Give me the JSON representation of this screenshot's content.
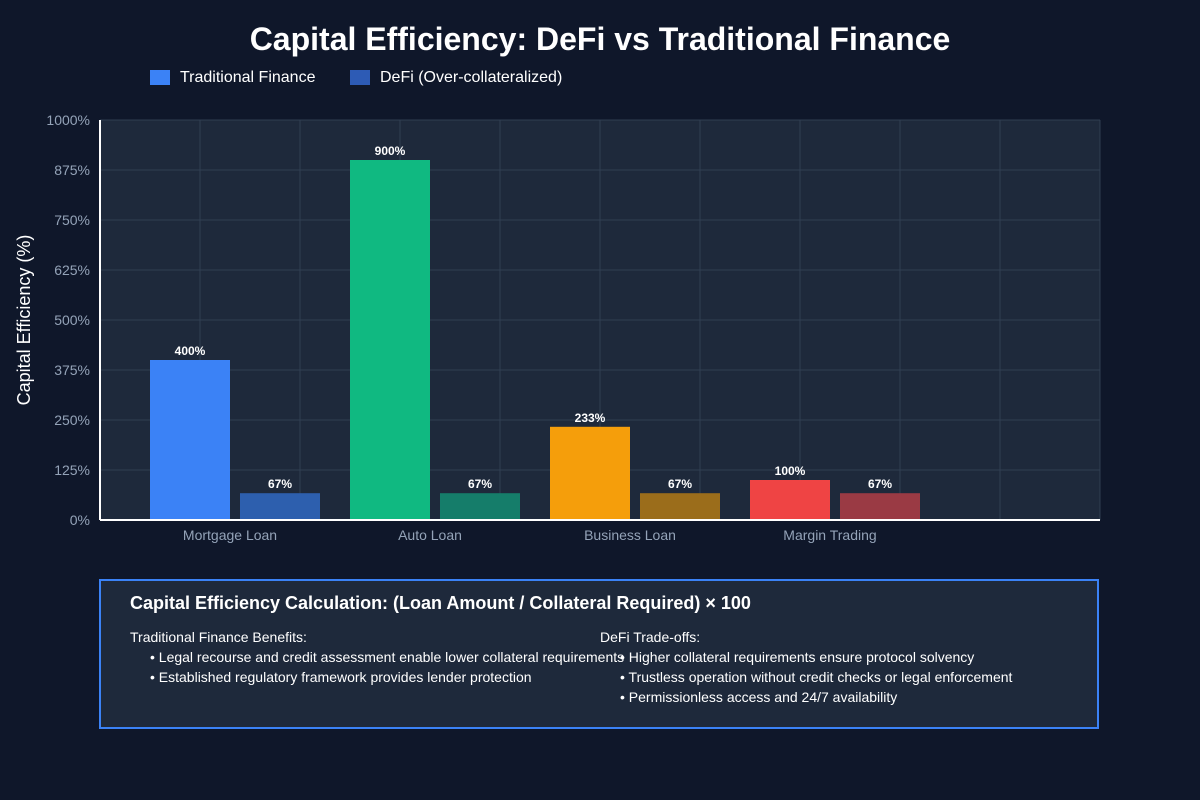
{
  "chart_data": {
    "type": "bar",
    "title": "Capital Efficiency: DeFi vs Traditional Finance",
    "xlabel": "",
    "ylabel": "Capital Efficiency (%)",
    "ylim": [
      0,
      1000
    ],
    "yticks": [
      "0%",
      "125%",
      "250%",
      "375%",
      "500%",
      "625%",
      "750%",
      "875%",
      "1000%"
    ],
    "ytick_values": [
      0,
      125,
      250,
      375,
      500,
      625,
      750,
      875,
      1000
    ],
    "grid": true,
    "legend_position": "top-left",
    "categories": [
      "Mortgage Loan",
      "Auto Loan",
      "Business Loan",
      "Margin Trading"
    ],
    "series": [
      {
        "name": "Traditional Finance",
        "values": [
          400,
          900,
          233,
          100
        ],
        "labels": [
          "400%",
          "900%",
          "233%",
          "100%"
        ],
        "legend_color": "#3b82f6",
        "colors": [
          "#3b82f6",
          "#10b981",
          "#f59e0b",
          "#ef4444"
        ]
      },
      {
        "name": "DeFi (Over-collateralized)",
        "values": [
          67,
          67,
          67,
          67
        ],
        "labels": [
          "67%",
          "67%",
          "67%",
          "67%"
        ],
        "legend_color": "#2d5bb5",
        "colors": [
          "#2d5fae",
          "#157d6a",
          "#9b6d1b",
          "#9a3a44"
        ]
      }
    ]
  },
  "info": {
    "title": "Capital Efficiency Calculation: (Loan Amount / Collateral Required) × 100",
    "left": {
      "heading": "Traditional Finance Benefits:",
      "items": [
        "• Legal recourse and credit assessment enable lower collateral requirements",
        "• Established regulatory framework provides lender protection"
      ]
    },
    "right": {
      "heading": "DeFi Trade-offs:",
      "items": [
        "• Higher collateral requirements ensure protocol solvency",
        "• Trustless operation without credit checks or legal enforcement",
        "• Permissionless access and 24/7 availability"
      ]
    }
  },
  "colors": {
    "background": "#0f172a",
    "plot_background": "#1e293b",
    "grid": "#334155",
    "axis_text": "#94a3b8",
    "accent": "#3b82f6"
  }
}
